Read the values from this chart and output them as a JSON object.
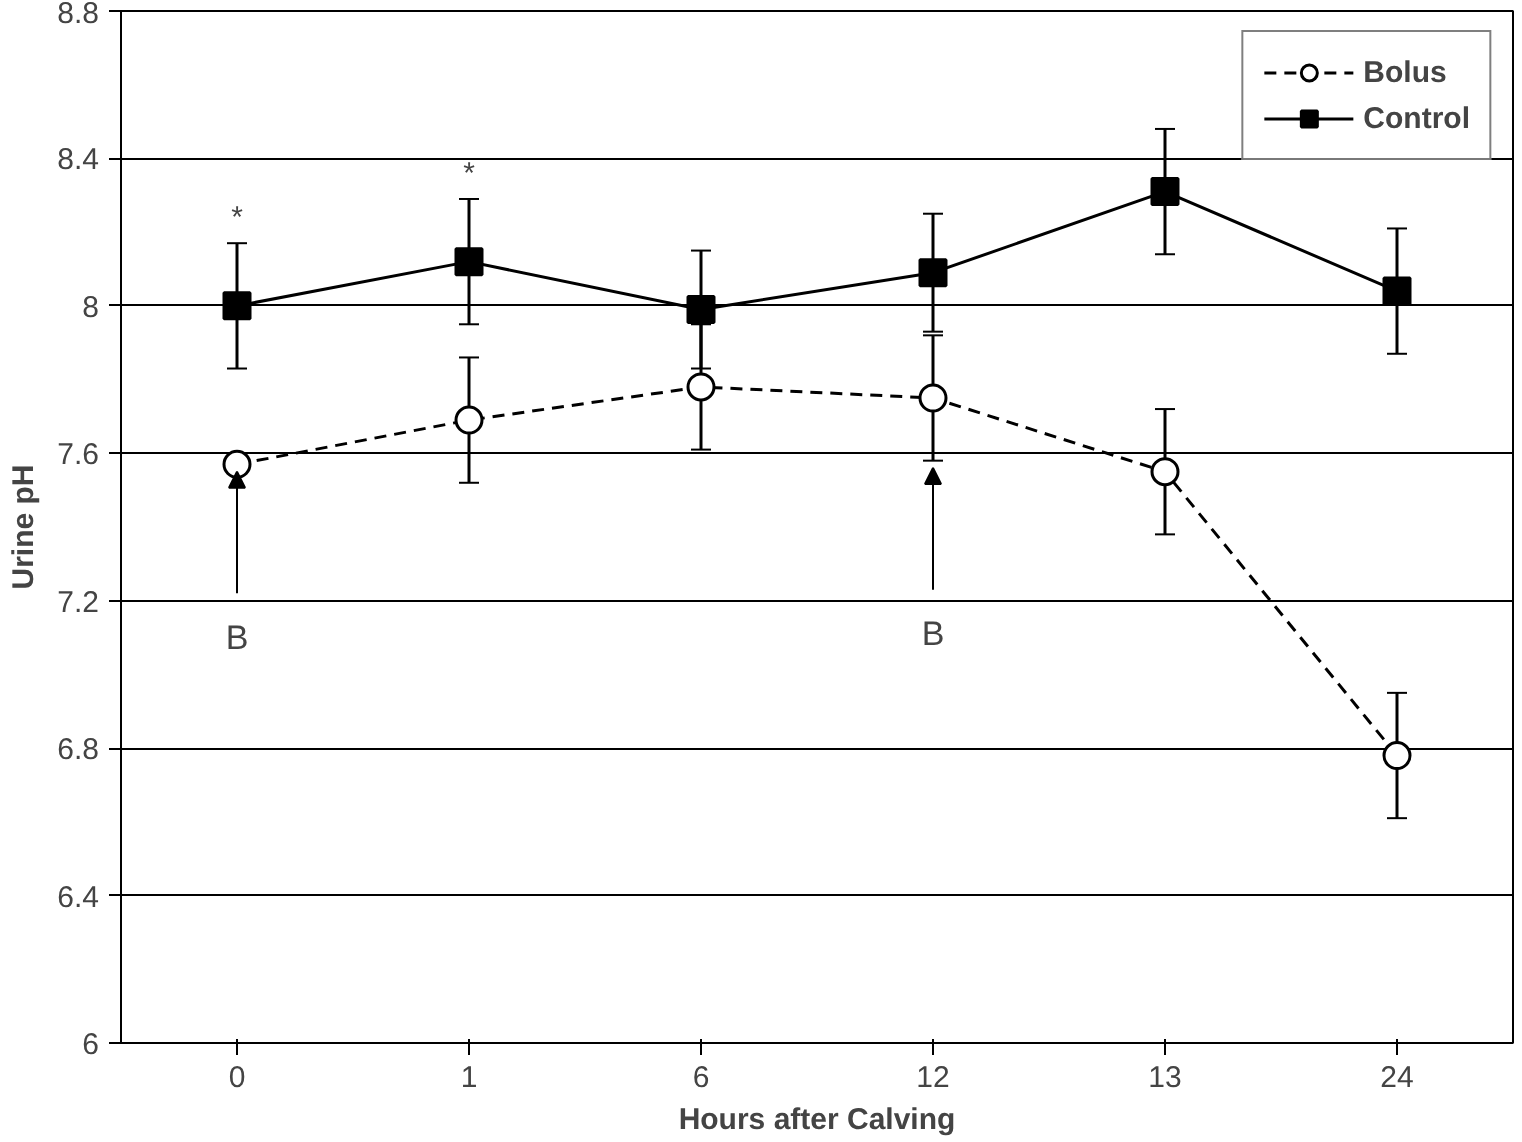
{
  "chart_data": {
    "type": "line",
    "xlabel": "Hours after Calving",
    "ylabel": "Urine pH",
    "categories": [
      "0",
      "1",
      "6",
      "12",
      "13",
      "24"
    ],
    "series": [
      {
        "name": "Bolus",
        "color": "#000000",
        "marker": "circle",
        "line_style": "dashed",
        "values": [
          7.57,
          7.69,
          7.78,
          7.75,
          7.55,
          6.78
        ],
        "errors": [
          null,
          0.17,
          0.17,
          0.17,
          0.17,
          0.17
        ]
      },
      {
        "name": "Control",
        "color": "#000000",
        "marker": "square",
        "line_style": "solid",
        "values": [
          8.0,
          8.12,
          7.99,
          8.09,
          8.31,
          8.04
        ],
        "errors": [
          0.17,
          0.17,
          0.16,
          0.16,
          0.17,
          0.17
        ]
      }
    ],
    "ylim": [
      6,
      8.8
    ],
    "yticks": [
      6,
      6.4,
      6.8,
      7.2,
      7.6,
      8,
      8.4,
      8.8
    ],
    "grid": "y",
    "legend": "top right",
    "annotations": [
      {
        "text": "*",
        "x": "0",
        "y": 8.17
      },
      {
        "text": "*",
        "x": "1",
        "y": 8.29
      },
      {
        "text": "B",
        "x": "0",
        "y": 7.57
      },
      {
        "text": "B",
        "x": "12",
        "y": 7.58
      }
    ]
  }
}
